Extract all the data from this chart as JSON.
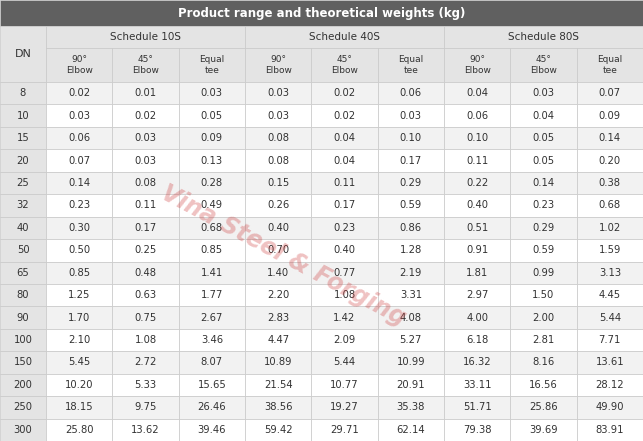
{
  "title": "Product range and theoretical weights (kg)",
  "col_groups": [
    "Schedule 10S",
    "Schedule 40S",
    "Schedule 80S"
  ],
  "sub_headers": [
    "90°\nElbow",
    "45°\nElbow",
    "Equal\ntee"
  ],
  "dn_col": "DN",
  "rows": [
    [
      8,
      0.02,
      0.01,
      0.03,
      0.03,
      0.02,
      0.06,
      0.04,
      0.03,
      0.07
    ],
    [
      10,
      0.03,
      0.02,
      0.05,
      0.03,
      0.02,
      0.03,
      0.06,
      0.04,
      0.09
    ],
    [
      15,
      0.06,
      0.03,
      0.09,
      0.08,
      0.04,
      0.1,
      0.1,
      0.05,
      0.14
    ],
    [
      20,
      0.07,
      0.03,
      0.13,
      0.08,
      0.04,
      0.17,
      0.11,
      0.05,
      0.2
    ],
    [
      25,
      0.14,
      0.08,
      0.28,
      0.15,
      0.11,
      0.29,
      0.22,
      0.14,
      0.38
    ],
    [
      32,
      0.23,
      0.11,
      0.49,
      0.26,
      0.17,
      0.59,
      0.4,
      0.23,
      0.68
    ],
    [
      40,
      0.3,
      0.17,
      0.68,
      0.4,
      0.23,
      0.86,
      0.51,
      0.29,
      1.02
    ],
    [
      50,
      0.5,
      0.25,
      0.85,
      0.7,
      0.4,
      1.28,
      0.91,
      0.59,
      1.59
    ],
    [
      65,
      0.85,
      0.48,
      1.41,
      1.4,
      0.77,
      2.19,
      1.81,
      0.99,
      3.13
    ],
    [
      80,
      1.25,
      0.63,
      1.77,
      2.2,
      1.08,
      3.31,
      2.97,
      1.5,
      4.45
    ],
    [
      90,
      1.7,
      0.75,
      2.67,
      2.83,
      1.42,
      4.08,
      4.0,
      2.0,
      5.44
    ],
    [
      100,
      2.1,
      1.08,
      3.46,
      4.47,
      2.09,
      5.27,
      6.18,
      2.81,
      7.71
    ],
    [
      150,
      5.45,
      2.72,
      8.07,
      10.89,
      5.44,
      10.99,
      16.32,
      8.16,
      13.61
    ],
    [
      200,
      10.2,
      5.33,
      15.65,
      21.54,
      10.77,
      20.91,
      33.11,
      16.56,
      28.12
    ],
    [
      250,
      18.15,
      9.75,
      26.46,
      38.56,
      19.27,
      35.38,
      51.71,
      25.86,
      49.9
    ],
    [
      300,
      25.8,
      13.62,
      39.46,
      59.42,
      29.71,
      62.14,
      79.38,
      39.69,
      83.91
    ]
  ],
  "title_bg": "#606060",
  "title_color": "#ffffff",
  "header_bg": "#e4e4e4",
  "header_color": "#333333",
  "row_bg_even": "#f2f2f2",
  "row_bg_odd": "#ffffff",
  "border_color": "#c8c8c8",
  "dn_bg": "#e4e4e4",
  "watermark_text": "Vina Steel & Forging",
  "watermark_color": "#cc3333",
  "watermark_alpha": 0.3,
  "fig_width": 6.43,
  "fig_height": 4.41,
  "dpi": 100
}
